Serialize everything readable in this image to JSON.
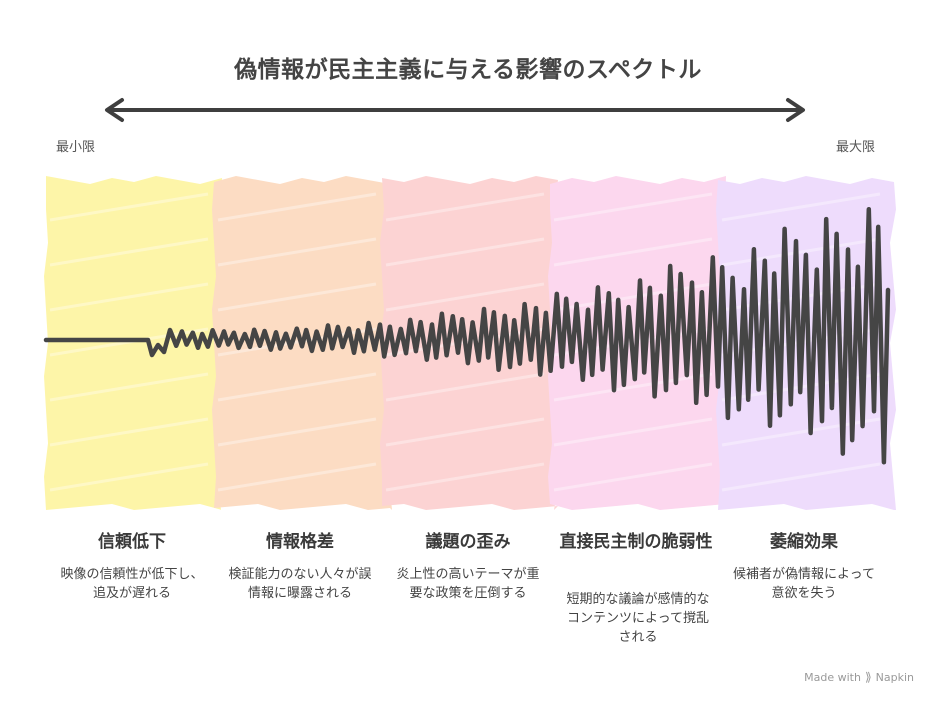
{
  "title": "偽情報が民主主義に与える影響のスペクトル",
  "scale": {
    "min_label": "最小限",
    "max_label": "最大限"
  },
  "stages": [
    {
      "title": "信頼低下",
      "description": "映像の信頼性が低下し、追及が遅れる",
      "color": "#fdf5a8"
    },
    {
      "title": "情報格差",
      "description": "検証能力のない人々が誤情報に曝露される",
      "color": "#fcdcc3"
    },
    {
      "title": "議題の歪み",
      "description": "炎上性の高いテーマが重要な政策を圧倒する",
      "color": "#fcd3d3"
    },
    {
      "title": "直接民主制の脆弱性",
      "description": "短期的な議論が感情的なコンテンツによって撹乱される",
      "color": "#fcd7ee"
    },
    {
      "title": "萎縮効果",
      "description": "候補者が偽情報によって意欲を失う",
      "color": "#eedcfc"
    }
  ],
  "footer": {
    "made_with": "Made with",
    "brand": "Napkin"
  }
}
